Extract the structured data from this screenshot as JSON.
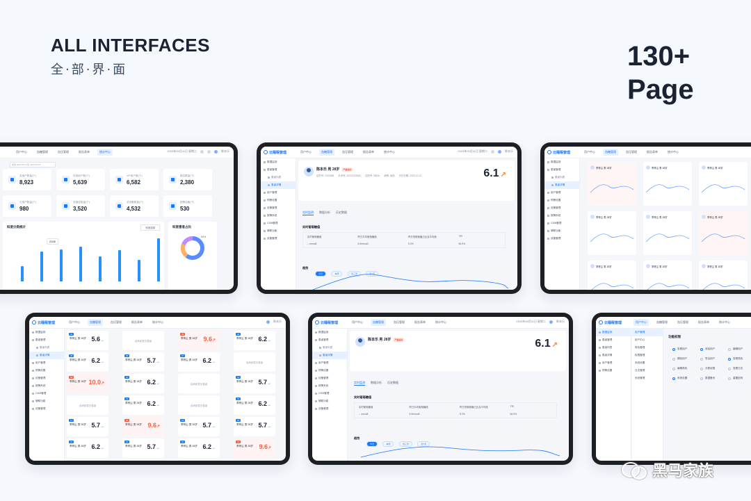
{
  "hero": {
    "title": "ALL INTERFACES",
    "subtitle": "全·部·界·面",
    "count": "130+",
    "page_word": "Page"
  },
  "colors": {
    "accent": "#1677ff",
    "alert": "#ff5a3c",
    "trend": "#ff8a2b",
    "frame": "#1e1f22"
  },
  "app": {
    "logo": "云睡眠管理",
    "nav": [
      "用户中心",
      "血糖管理",
      "血压管理",
      "报告表单",
      "统计中心"
    ],
    "user": "陈末乐",
    "datetime": "2023年05月11日 星期二",
    "sidebar": [
      "数据监测",
      "患者管理",
      "患者列表",
      "患者详情",
      "用户管理",
      "预警设置",
      "设备管理",
      "报警系统",
      "CDM管理",
      "辅助功能",
      "设备管理"
    ]
  },
  "dashboard": {
    "search_placeholder": "搜索 2023-05-12至 2023-05-18",
    "stats": [
      {
        "label": "总用户数量(个)",
        "value": "8,923"
      },
      {
        "label": "在线用户数(个)",
        "value": "5,639"
      },
      {
        "label": "VIP用户数(个)",
        "value": "6,582"
      },
      {
        "label": "报告数量(个)",
        "value": "2,380"
      },
      {
        "label": "已用户数量(个)",
        "value": "980"
      },
      {
        "label": "总报告数量(个)",
        "value": "3,520"
      },
      {
        "label": "总设备数量(个)",
        "value": "4,532"
      },
      {
        "label": "报警设备(个)",
        "value": "530"
      }
    ],
    "bar_card_title": "科室分类统计",
    "bar_filter": "科室选择",
    "bar_tooltip": "2325",
    "bar_values": [
      35,
      70,
      75,
      80,
      58,
      72,
      50,
      100
    ],
    "donut_title": "科室患者占比",
    "donut_value": "60%"
  },
  "patient": {
    "name": "陈本乐",
    "sex": "男",
    "age": "28岁",
    "tag": "严重超标",
    "score": "6.1",
    "fields": [
      "证件号: 2023488",
      "手术号: 20221223583",
      "住院号: 3床46",
      "病情: 危险",
      "开诊日期: 2023.10.10"
    ],
    "tabs": [
      "实时监测",
      "数据分析",
      "历史数据"
    ],
    "section": "实时葡萄糖值",
    "table_headers": [
      "实时葡萄糖值",
      "昨日平均葡萄糖值",
      "昨日低葡萄糖占比及平均值",
      "TIR"
    ],
    "table_row": [
      "-- mmol/L",
      "5.9mmol/L",
      "5.2%",
      "56.9%"
    ],
    "chart_label": "趋势",
    "pills": [
      "今日",
      "本周",
      "近三天",
      "近7天"
    ]
  },
  "ward": {
    "name_line": "李梓尘 男 28岁",
    "empty_text": "该病床暂无患者",
    "beds": [
      {
        "v": "5.6",
        "alert": false
      },
      {
        "empty": true
      },
      {
        "v": "9.6",
        "alert": true
      },
      {
        "v": "6.2",
        "alert": false
      },
      {
        "v": "6.2",
        "alert": false
      },
      {
        "v": "5.7",
        "alert": false
      },
      {
        "v": "6.2",
        "alert": false
      },
      {
        "empty": true
      },
      {
        "v": "10.0",
        "alert": true
      },
      {
        "v": "6.2",
        "alert": false
      },
      {
        "empty": true
      },
      {
        "v": "5.7",
        "alert": false
      },
      {
        "empty": true
      },
      {
        "v": "6.2",
        "alert": false
      },
      {
        "empty": true
      },
      {
        "v": "6.2",
        "alert": false
      },
      {
        "v": "5.7",
        "alert": false
      },
      {
        "v": "9.6",
        "alert": true
      },
      {
        "v": "5.7",
        "alert": false
      },
      {
        "v": "5.7",
        "alert": false
      },
      {
        "v": "6.2",
        "alert": false
      },
      {
        "v": "5.7",
        "alert": false
      },
      {
        "v": "6.2",
        "alert": false
      },
      {
        "v": "9.6",
        "alert": true
      }
    ]
  },
  "permissions": {
    "title": "功能权限",
    "menu": [
      "用户管理",
      "用户中心",
      "角色管理",
      "权限管理",
      "系统设置",
      "日志管理",
      "系统管理"
    ],
    "options": [
      "查看用户",
      "添加用户",
      "编辑用户",
      "删除用户",
      "导出用户",
      "查看角色",
      "编辑角色",
      "分配权限",
      "查看日志",
      "系统设置",
      "数据备份",
      "重置密码"
    ]
  },
  "watermark": "黑马家族"
}
